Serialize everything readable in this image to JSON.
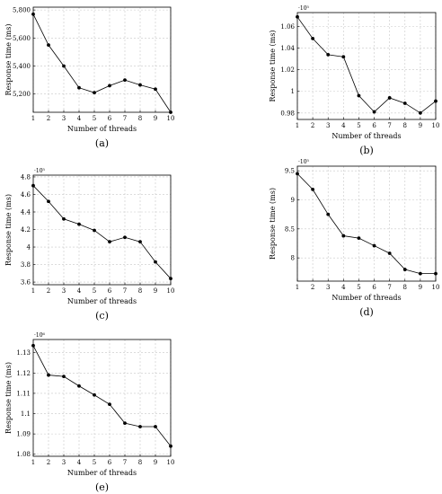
{
  "chart_data": [
    {
      "panel": "(a)",
      "type": "line",
      "xlabel": "Number of threads",
      "ylabel": "Response time (ms)",
      "exponent": "",
      "x": [
        1,
        2,
        3,
        4,
        5,
        6,
        7,
        8,
        9,
        10
      ],
      "y": [
        5770,
        5550,
        5400,
        5245,
        5210,
        5260,
        5300,
        5265,
        5235,
        5070
      ],
      "xlim": [
        1,
        10
      ],
      "ylim": [
        5070,
        5820
      ],
      "yticks": [
        5200,
        5400,
        5600,
        5800
      ],
      "ytick_labels": [
        "5,200",
        "5,400",
        "5,600",
        "5,800"
      ],
      "grid": true
    },
    {
      "panel": "(b)",
      "type": "line",
      "xlabel": "Number of threads",
      "ylabel": "Response time (ms)",
      "exponent": "·10⁵",
      "x": [
        1,
        2,
        3,
        4,
        5,
        6,
        7,
        8,
        9,
        10
      ],
      "y": [
        1.069,
        1.049,
        1.034,
        1.032,
        0.996,
        0.981,
        0.994,
        0.989,
        0.98,
        0.991
      ],
      "xlim": [
        1,
        10
      ],
      "ylim": [
        0.974,
        1.073
      ],
      "yticks": [
        0.98,
        1.0,
        1.02,
        1.04,
        1.06
      ],
      "ytick_labels": [
        "0.98",
        "1",
        "1.02",
        "1.04",
        "1.06"
      ],
      "grid": true
    },
    {
      "panel": "(c)",
      "type": "line",
      "xlabel": "Number of threads",
      "ylabel": "Response time (ms)",
      "exponent": "·10⁵",
      "x": [
        1,
        2,
        3,
        4,
        5,
        6,
        7,
        8,
        9,
        10
      ],
      "y": [
        4.7,
        4.52,
        4.32,
        4.26,
        4.19,
        4.06,
        4.11,
        4.06,
        3.83,
        3.64
      ],
      "xlim": [
        1,
        10
      ],
      "ylim": [
        3.57,
        4.82
      ],
      "yticks": [
        3.6,
        3.8,
        4.0,
        4.2,
        4.4,
        4.6,
        4.8
      ],
      "ytick_labels": [
        "3.6",
        "3.8",
        "4",
        "4.2",
        "4.4",
        "4.6",
        "4.8"
      ],
      "grid": true
    },
    {
      "panel": "(d)",
      "type": "line",
      "xlabel": "Number of threads",
      "ylabel": "Response time (ms)",
      "exponent": "·10⁵",
      "x": [
        1,
        2,
        3,
        4,
        5,
        6,
        7,
        8,
        9,
        10
      ],
      "y": [
        9.45,
        9.18,
        8.75,
        8.38,
        8.34,
        8.21,
        8.08,
        7.8,
        7.73,
        7.73
      ],
      "xlim": [
        1,
        10
      ],
      "ylim": [
        7.6,
        9.58
      ],
      "yticks": [
        8.0,
        8.5,
        9.0,
        9.5
      ],
      "ytick_labels": [
        "8",
        "8.5",
        "9",
        "9.5"
      ],
      "grid": true
    },
    {
      "panel": "(e)",
      "type": "line",
      "xlabel": "Number of threads",
      "ylabel": "Response time (ms)",
      "exponent": "·10⁶",
      "x": [
        1,
        2,
        3,
        4,
        5,
        6,
        7,
        8,
        9,
        10
      ],
      "y": [
        1.1335,
        1.119,
        1.1183,
        1.1136,
        1.1092,
        1.1046,
        1.0953,
        1.0936,
        1.0936,
        1.084
      ],
      "xlim": [
        1,
        10
      ],
      "ylim": [
        1.079,
        1.1365
      ],
      "yticks": [
        1.08,
        1.09,
        1.1,
        1.11,
        1.12,
        1.13
      ],
      "ytick_labels": [
        "1.08",
        "1.09",
        "1.1",
        "1.11",
        "1.12",
        "1.13"
      ],
      "grid": true
    }
  ]
}
